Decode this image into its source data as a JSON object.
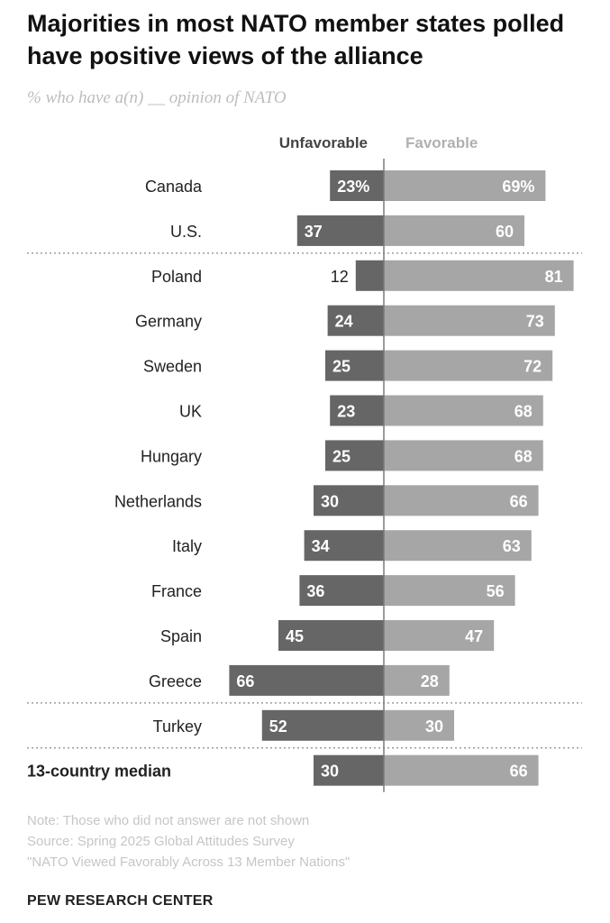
{
  "title": "Majorities in most NATO member states polled have positive views of the alliance",
  "subtitle": "% who have a(n) __ opinion of NATO",
  "colors": {
    "unfavorable": "#666666",
    "favorable": "#a6a6a6",
    "axis": "#7a7a7a",
    "separator": "#8a8a8a",
    "label_text": "#222222",
    "unfavorable_header": "#444444",
    "favorable_header": "#b0b0b0"
  },
  "chart_data": {
    "type": "bar",
    "orientation": "horizontal-diverging",
    "series": [
      {
        "name": "Unfavorable",
        "values": [
          23,
          37,
          12,
          24,
          25,
          23,
          25,
          30,
          34,
          36,
          45,
          66,
          52,
          30
        ]
      },
      {
        "name": "Favorable",
        "values": [
          69,
          60,
          81,
          73,
          72,
          68,
          68,
          66,
          63,
          56,
          47,
          28,
          30,
          66
        ]
      }
    ],
    "categories": [
      "Canada",
      "U.S.",
      "Poland",
      "Germany",
      "Sweden",
      "UK",
      "Hungary",
      "Netherlands",
      "Italy",
      "France",
      "Spain",
      "Greece",
      "Turkey",
      "13-country median"
    ],
    "value_labels": {
      "unfavorable": [
        "23%",
        "37",
        "12",
        "24",
        "25",
        "23",
        "25",
        "30",
        "34",
        "36",
        "45",
        "66",
        "52",
        "30"
      ],
      "favorable": [
        "69%",
        "60",
        "81",
        "73",
        "72",
        "68",
        "68",
        "66",
        "63",
        "56",
        "47",
        "28",
        "30",
        "66"
      ]
    },
    "separators_after": [
      "U.S.",
      "Greece",
      "Turkey"
    ],
    "emphasized_category": "13-country median",
    "legend": "column headers above bars",
    "grid": false
  },
  "notes": [
    "Note: Those who did not answer are not shown",
    "Source: Spring 2025 Global Attitudes Survey",
    "\"NATO Viewed Favorably Across 13 Member Nations\""
  ],
  "brand": "PEW RESEARCH CENTER"
}
